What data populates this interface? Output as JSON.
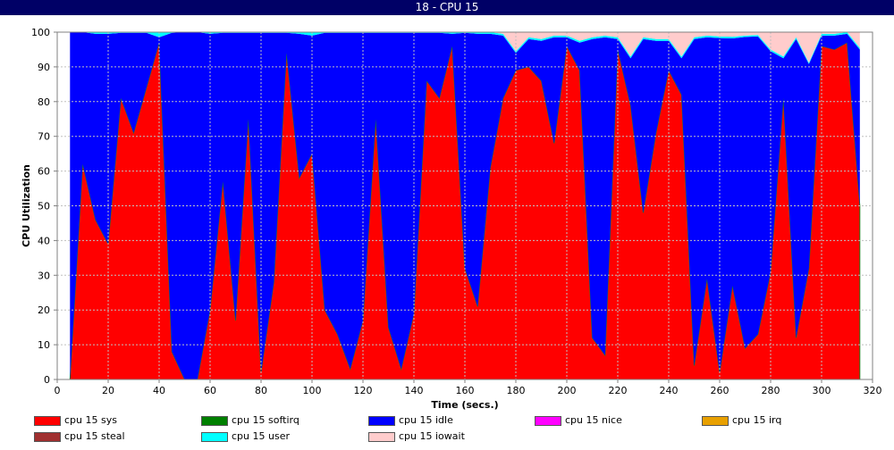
{
  "window": {
    "title": "18 - CPU 15"
  },
  "chart_data": {
    "type": "area",
    "stacked": true,
    "title": "",
    "xlabel": "Time (secs.)",
    "ylabel": "CPU Utilization",
    "xlim": [
      0,
      320
    ],
    "ylim": [
      0,
      100
    ],
    "xticks": [
      0,
      20,
      40,
      60,
      80,
      100,
      120,
      140,
      160,
      180,
      200,
      220,
      240,
      260,
      280,
      300,
      320
    ],
    "yticks": [
      0,
      10,
      20,
      30,
      40,
      50,
      60,
      70,
      80,
      90,
      100
    ],
    "grid": true,
    "legend_position": "bottom",
    "x": [
      5,
      10,
      15,
      20,
      25,
      30,
      35,
      40,
      45,
      50,
      55,
      60,
      65,
      70,
      75,
      80,
      85,
      90,
      95,
      100,
      105,
      110,
      115,
      120,
      125,
      130,
      135,
      140,
      145,
      150,
      155,
      160,
      165,
      170,
      175,
      180,
      185,
      190,
      195,
      200,
      205,
      210,
      215,
      220,
      225,
      230,
      235,
      240,
      245,
      250,
      255,
      260,
      265,
      270,
      275,
      280,
      285,
      290,
      295,
      300,
      305,
      310,
      315
    ],
    "series": [
      {
        "name": "cpu 15 sys",
        "color": "#ff0000",
        "values": [
          0,
          62,
          46,
          39,
          81,
          71,
          84,
          97,
          8,
          0,
          0,
          20,
          57,
          17,
          75,
          2,
          28,
          94,
          58,
          65,
          20,
          13,
          3,
          17,
          75,
          15,
          3,
          19,
          86,
          81,
          96,
          32,
          21,
          61,
          81,
          89,
          90,
          86,
          68,
          96,
          89,
          12,
          7,
          95,
          79,
          48,
          71,
          89,
          82,
          4,
          29,
          2,
          27,
          9,
          13,
          31,
          81,
          12,
          32,
          96,
          95,
          97,
          50
        ]
      },
      {
        "name": "cpu 15 softirq",
        "color": "#008000",
        "values": [
          0,
          0,
          0,
          0,
          0,
          0,
          0,
          0,
          0,
          0,
          0,
          0,
          0,
          0,
          0,
          0,
          0,
          0,
          0,
          0,
          0,
          0,
          0,
          0,
          0,
          0,
          0,
          0,
          0,
          0,
          0,
          0,
          0,
          0,
          0,
          0,
          0,
          0,
          0,
          0,
          0,
          0,
          0,
          0,
          0,
          0,
          0,
          0,
          0,
          0,
          0,
          0,
          0,
          0,
          0,
          0,
          0,
          0,
          0,
          0,
          0,
          0,
          0
        ]
      },
      {
        "name": "cpu 15 idle",
        "color": "#0000ff",
        "values": [
          100,
          38,
          53.5,
          60.5,
          18.8,
          28.8,
          15.8,
          1.5,
          91.8,
          100,
          100,
          79.5,
          42.8,
          82.8,
          24.8,
          97.8,
          71.8,
          5.8,
          41.5,
          34,
          79.8,
          86.8,
          96.8,
          82.8,
          24.8,
          84.8,
          96.8,
          80.8,
          13.8,
          18.8,
          3.5,
          67.8,
          78.5,
          38.5,
          18,
          5,
          8,
          11.5,
          30.5,
          2.5,
          8,
          86,
          91.5,
          3,
          13.5,
          50,
          26.5,
          8.5,
          10.5,
          94,
          69.5,
          96.3,
          71.2,
          89.6,
          85.8,
          63.5,
          11.5,
          86,
          58.8,
          3,
          4,
          2.5,
          45
        ]
      },
      {
        "name": "cpu 15 nice",
        "color": "#ff00ff",
        "values": [
          0,
          0,
          0,
          0,
          0,
          0,
          0,
          0,
          0,
          0,
          0,
          0,
          0,
          0,
          0,
          0,
          0,
          0,
          0,
          0,
          0,
          0,
          0,
          0,
          0,
          0,
          0,
          0,
          0,
          0,
          0,
          0,
          0,
          0,
          0,
          0,
          0,
          0,
          0,
          0,
          0,
          0,
          0,
          0,
          0,
          0,
          0,
          0,
          0,
          0,
          0,
          0,
          0,
          0,
          0,
          0,
          0,
          0,
          0,
          0,
          0,
          0,
          0
        ]
      },
      {
        "name": "cpu 15 irq",
        "color": "#e8a000",
        "values": [
          0,
          0,
          0,
          0,
          0,
          0,
          0,
          0,
          0,
          0,
          0,
          0,
          0,
          0,
          0,
          0,
          0,
          0,
          0,
          0,
          0,
          0,
          0,
          0,
          0,
          0,
          0,
          0,
          0,
          0,
          0,
          0,
          0,
          0,
          0,
          0,
          0,
          0,
          0,
          0,
          0,
          0,
          0,
          0,
          0,
          0,
          0,
          0,
          0,
          0,
          0,
          0,
          0,
          0,
          0,
          0,
          0,
          0,
          0,
          0,
          0,
          0,
          0
        ]
      },
      {
        "name": "cpu 15 steal",
        "color": "#a03030",
        "values": [
          0,
          0,
          0,
          0,
          0,
          0,
          0,
          0,
          0,
          0,
          0,
          0,
          0,
          0,
          0,
          0,
          0,
          0,
          0,
          0,
          0,
          0,
          0,
          0,
          0,
          0,
          0,
          0,
          0,
          0,
          0,
          0,
          0,
          0,
          0,
          0,
          0,
          0,
          0,
          0,
          0,
          0,
          0,
          0,
          0,
          0,
          0,
          0,
          0,
          0,
          0,
          0,
          0,
          0,
          0,
          0,
          0,
          0,
          0,
          0,
          0,
          0,
          0
        ]
      },
      {
        "name": "cpu 15 user",
        "color": "#00ffff",
        "values": [
          0,
          0,
          0.5,
          0.5,
          0.2,
          0.2,
          0.2,
          1.5,
          0.2,
          0,
          0,
          0.5,
          0.2,
          0.2,
          0.2,
          0.2,
          0.2,
          0.2,
          0.5,
          1,
          0.2,
          0.2,
          0.2,
          0.2,
          0.2,
          0.2,
          0.2,
          0.2,
          0.2,
          0.2,
          0.5,
          0.2,
          0.5,
          0.5,
          0.5,
          0.5,
          0.5,
          0.5,
          0.5,
          0.5,
          0.5,
          0.5,
          0.5,
          0.5,
          0.5,
          0.5,
          0.5,
          0.5,
          0.5,
          0.5,
          0.5,
          0.5,
          0.5,
          0.4,
          0.4,
          0.5,
          0.5,
          0.5,
          0.4,
          0.5,
          0.5,
          0.5,
          0.5
        ]
      },
      {
        "name": "cpu 15 iowait",
        "color": "#ffcccc",
        "values": [
          0,
          0,
          0,
          0,
          0,
          0,
          0,
          0,
          0,
          0,
          0,
          0,
          0,
          0,
          0,
          0,
          0,
          0,
          0,
          0,
          0,
          0,
          0,
          0,
          0,
          0,
          0,
          0,
          0,
          0,
          0,
          0,
          0,
          0,
          0.5,
          5.5,
          1.5,
          2,
          1,
          1,
          2.5,
          1.5,
          1,
          1.5,
          7,
          1.5,
          2,
          2,
          7,
          1.5,
          1,
          1.2,
          1.3,
          1,
          0.8,
          5,
          7,
          1.5,
          8.8,
          0.5,
          0.5,
          0,
          4.5
        ]
      }
    ]
  }
}
